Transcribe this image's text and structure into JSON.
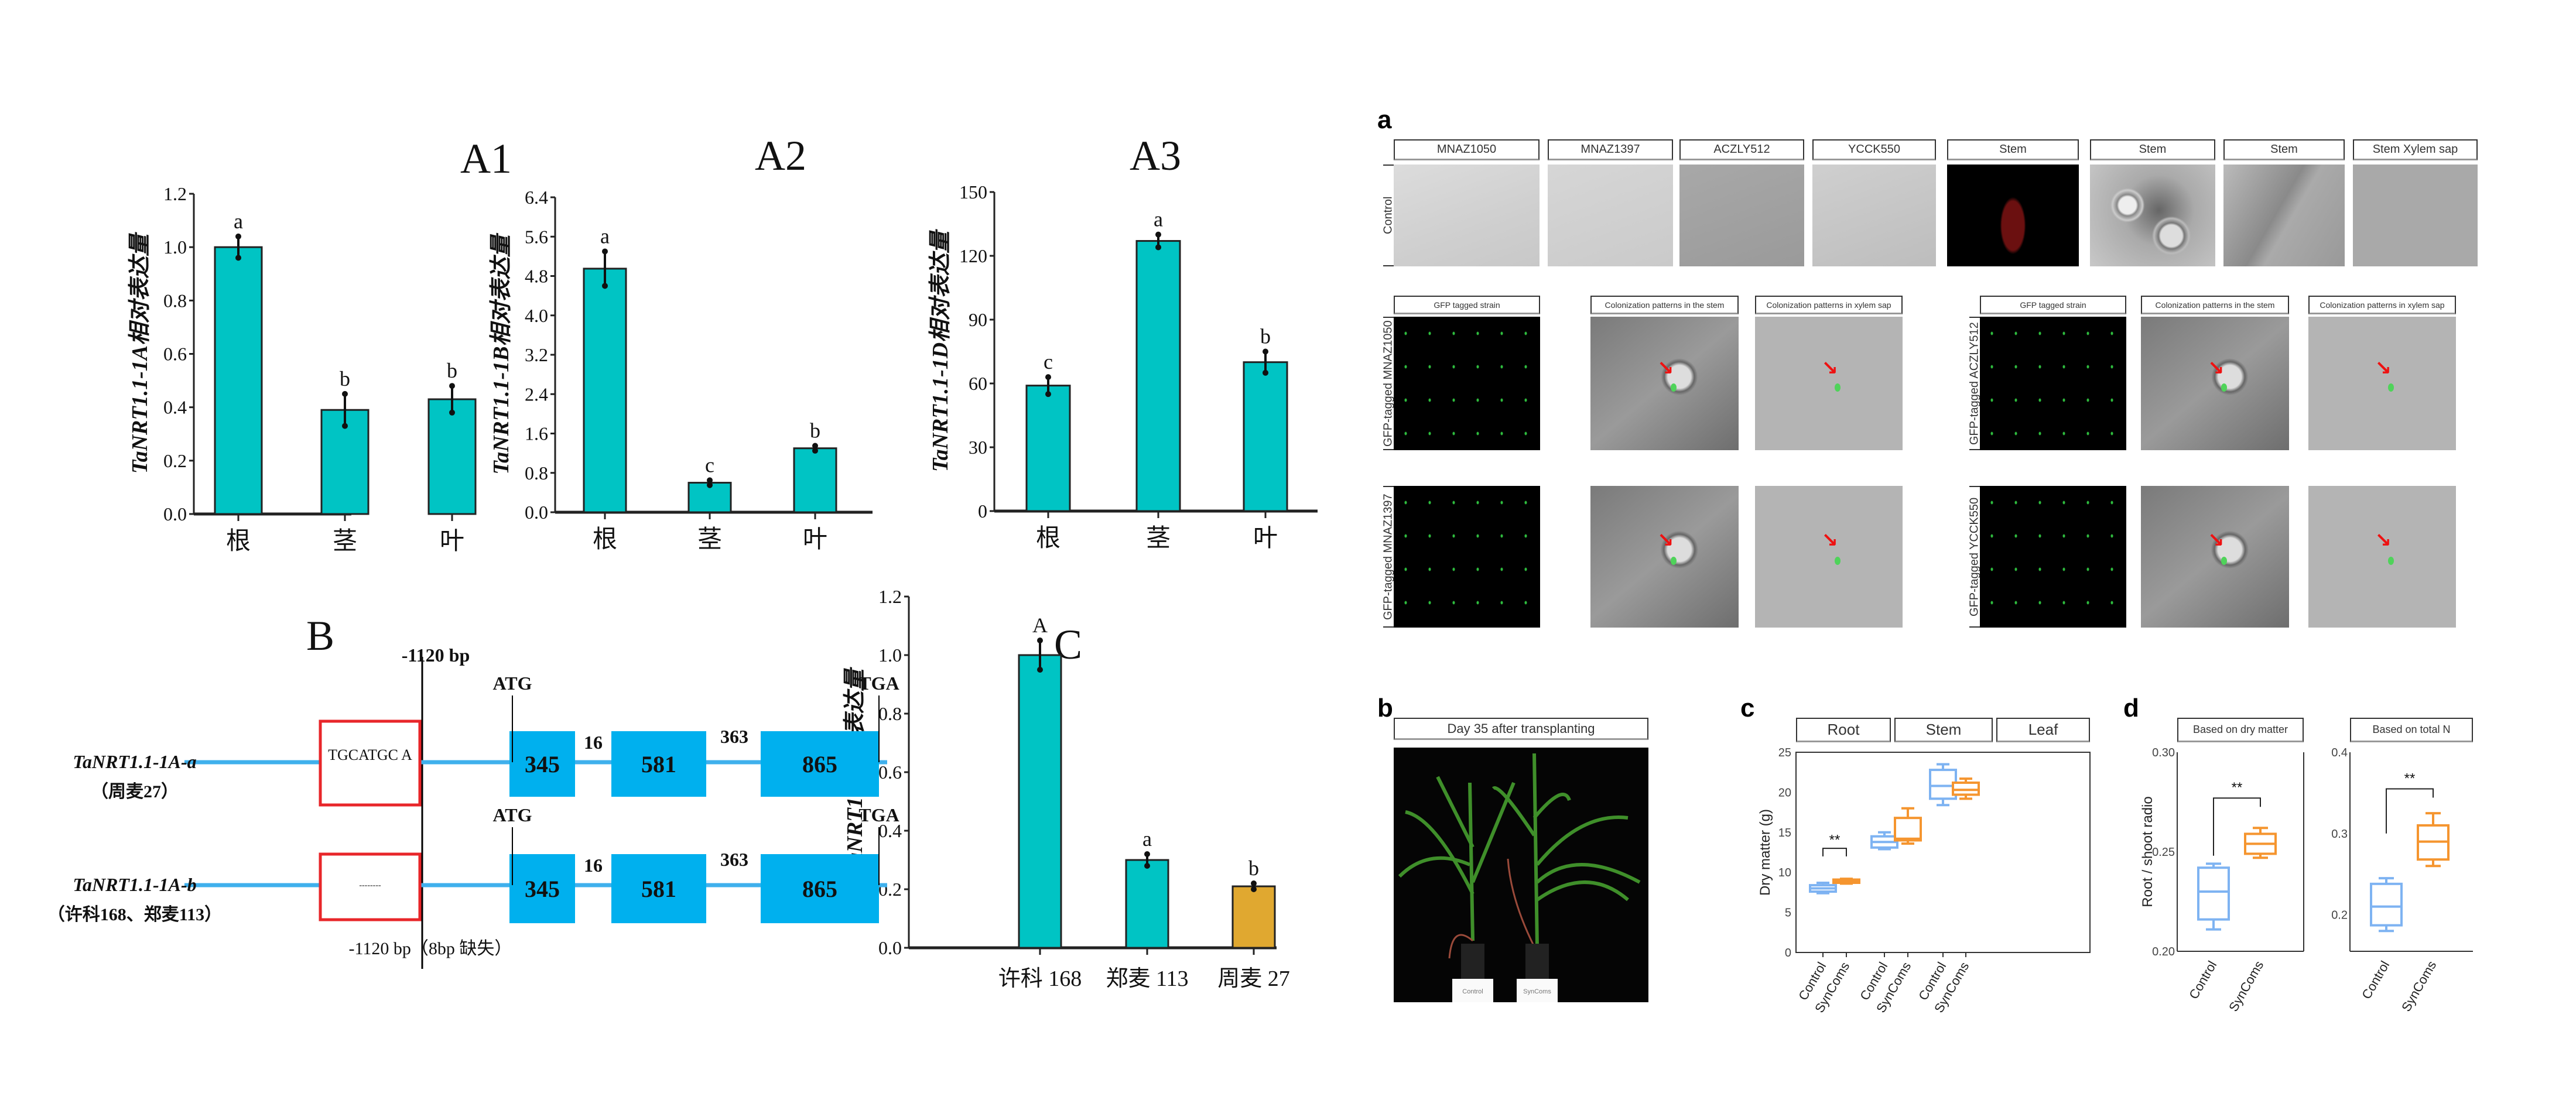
{
  "panel_labels": {
    "A1": "A1",
    "A2": "A2",
    "A3": "A3",
    "B": "B",
    "C": "C",
    "a": "a",
    "b": "b",
    "c": "c",
    "d": "d"
  },
  "colors": {
    "teal": "#00c4c4",
    "gold": "#e0a830",
    "exon": "#00b0ee",
    "red_box": "#e8262a",
    "control": "#7eb3f2",
    "syncoms": "#f5952f"
  },
  "chart_data": [
    {
      "id": "A1",
      "type": "bar",
      "title": "A1",
      "ylabel": "TaNRT1.1-1A相对表达量",
      "categories": [
        "根",
        "茎",
        "叶"
      ],
      "values": [
        1.0,
        0.39,
        0.43
      ],
      "errors": [
        0.04,
        0.06,
        0.05
      ],
      "letters": [
        "a",
        "b",
        "b"
      ],
      "ylim": [
        0,
        1.2
      ],
      "yticks": [
        "0.0",
        "0.2",
        "0.4",
        "0.6",
        "0.8",
        "1.0",
        "1.2"
      ],
      "bar_colors": [
        "#00c4c4",
        "#00c4c4",
        "#00c4c4"
      ]
    },
    {
      "id": "A2",
      "type": "bar",
      "title": "A2",
      "ylabel": "TaNRT1.1-1B相对表达量",
      "categories": [
        "根",
        "茎",
        "叶"
      ],
      "values": [
        4.95,
        0.6,
        1.3
      ],
      "errors": [
        0.35,
        0.05,
        0.05
      ],
      "letters": [
        "a",
        "c",
        "b"
      ],
      "ylim": [
        0,
        6.4
      ],
      "yticks": [
        "0.0",
        "0.8",
        "1.6",
        "2.4",
        "3.2",
        "4.0",
        "4.8",
        "5.6",
        "6.4"
      ],
      "bar_colors": [
        "#00c4c4",
        "#00c4c4",
        "#00c4c4"
      ]
    },
    {
      "id": "A3",
      "type": "bar",
      "title": "A3",
      "ylabel": "TaNRT1.1-1D相对表达量",
      "categories": [
        "根",
        "茎",
        "叶"
      ],
      "values": [
        59,
        127,
        70
      ],
      "errors": [
        4,
        3,
        5
      ],
      "letters": [
        "c",
        "a",
        "b"
      ],
      "ylim": [
        0,
        150
      ],
      "yticks": [
        "0",
        "30",
        "60",
        "90",
        "120",
        "150"
      ],
      "bar_colors": [
        "#00c4c4",
        "#00c4c4",
        "#00c4c4"
      ]
    },
    {
      "id": "C",
      "type": "bar",
      "title": "C",
      "ylabel": "TaNRT1.1相对表达量",
      "categories": [
        "许科 168",
        "郑麦 113",
        "周麦 27"
      ],
      "values": [
        1.0,
        0.3,
        0.21
      ],
      "errors": [
        0.05,
        0.02,
        0.01
      ],
      "letters": [
        "A",
        "a",
        "b"
      ],
      "ylim": [
        0,
        1.2
      ],
      "yticks": [
        "0.0",
        "0.2",
        "0.4",
        "0.6",
        "0.8",
        "1.0",
        "1.2"
      ],
      "bar_colors": [
        "#00c4c4",
        "#00c4c4",
        "#e0a830"
      ]
    },
    {
      "id": "c",
      "type": "box",
      "ylabel": "Dry matter (g)",
      "facets": [
        "Root",
        "Stem",
        "Leaf"
      ],
      "groups": [
        "Control",
        "SynComs"
      ],
      "ylim": [
        0,
        25
      ],
      "yticks": [
        "0",
        "5",
        "10",
        "15",
        "20",
        "25"
      ],
      "boxes": [
        {
          "facet": "Root",
          "group": "Control",
          "min": 7.4,
          "q1": 7.6,
          "median": 8.0,
          "q3": 8.4,
          "max": 8.7
        },
        {
          "facet": "Root",
          "group": "SynComs",
          "min": 8.6,
          "q1": 8.7,
          "median": 8.9,
          "q3": 9.1,
          "max": 9.2
        },
        {
          "facet": "Stem",
          "group": "Control",
          "min": 12.9,
          "q1": 13.1,
          "median": 13.8,
          "q3": 14.5,
          "max": 15.0
        },
        {
          "facet": "Stem",
          "group": "SynComs",
          "min": 13.6,
          "q1": 14.0,
          "median": 14.2,
          "q3": 16.8,
          "max": 18.0
        },
        {
          "facet": "Leaf",
          "group": "Control",
          "min": 18.4,
          "q1": 19.2,
          "median": 20.8,
          "q3": 22.8,
          "max": 23.5
        },
        {
          "facet": "Leaf",
          "group": "SynComs",
          "min": 19.2,
          "q1": 19.7,
          "median": 20.3,
          "q3": 21.2,
          "max": 21.7
        }
      ],
      "significance": [
        {
          "facet": "Root",
          "label": "**"
        }
      ]
    },
    {
      "id": "d",
      "type": "box",
      "ylabel": "Root / shoot radio",
      "facets": [
        "Based on dry matter",
        "Based on total N"
      ],
      "groups": [
        "Control",
        "SynComs"
      ],
      "facet_ylims": [
        [
          0.2,
          0.3
        ],
        [
          0.155,
          0.4
        ]
      ],
      "facet_yticks": [
        [
          "0.20",
          "0.25",
          "0.30"
        ],
        [
          "0.2",
          "0.3",
          "0.4"
        ]
      ],
      "boxes": [
        {
          "facet": "Based on dry matter",
          "group": "Control",
          "min": 0.211,
          "q1": 0.216,
          "median": 0.23,
          "q3": 0.242,
          "max": 0.244
        },
        {
          "facet": "Based on dry matter",
          "group": "SynComs",
          "min": 0.247,
          "q1": 0.249,
          "median": 0.254,
          "q3": 0.259,
          "max": 0.262
        },
        {
          "facet": "Based on total N",
          "group": "Control",
          "min": 0.18,
          "q1": 0.187,
          "median": 0.21,
          "q3": 0.238,
          "max": 0.245
        },
        {
          "facet": "Based on total N",
          "group": "SynComs",
          "min": 0.26,
          "q1": 0.268,
          "median": 0.29,
          "q3": 0.31,
          "max": 0.325
        }
      ],
      "significance": [
        {
          "facet": "Based on dry matter",
          "label": "**"
        },
        {
          "facet": "Based on total N",
          "label": "**"
        }
      ]
    }
  ],
  "gene_diagram": {
    "title": "B",
    "rows": [
      {
        "name": "TaNRT1.1-1A-a",
        "varieties": "（周麦27）",
        "box_text": "TGCATGC A"
      },
      {
        "name": "TaNRT1.1-1A-b",
        "varieties": "（许科168、郑麦113）",
        "box_text": "--------"
      }
    ],
    "start_codon": "ATG",
    "stop_codon": "TGA",
    "exons": [
      "345",
      "581",
      "865"
    ],
    "introns": [
      "16",
      "363"
    ],
    "promoter_label_top": "-1120 bp",
    "promoter_label_bottom": "-1120 bp（8bp 缺失）"
  },
  "micrographs": {
    "row1_side": "Control",
    "row1_headers": [
      "MNAZ1050",
      "MNAZ1397",
      "ACZLY512",
      "YCCK550",
      "Stem",
      "Stem",
      "Stem",
      "Stem Xylem sap"
    ],
    "sub_headers": [
      "GFP tagged strain",
      "Colonization patterns in the stem",
      "Colonization patterns in xylem sap"
    ],
    "side_labels": [
      "GFP-tagged MNAZ1050",
      "GFP-tagged ACZLY512",
      "GFP-tagged MNAZ1397",
      "GFP-tagged YCCK550"
    ]
  },
  "photo": {
    "header": "Day 35 after transplanting",
    "pot_labels": [
      "Control",
      "SynComs"
    ]
  }
}
